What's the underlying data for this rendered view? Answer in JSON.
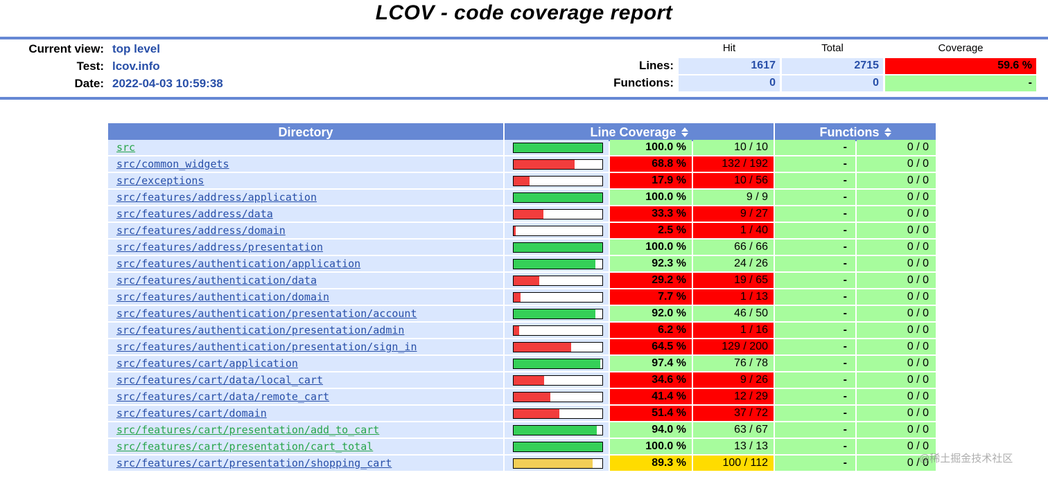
{
  "title": "LCOV - code coverage report",
  "watermark": "@稀土掘金技术社区",
  "colors": {
    "accent_blue": "#6688D4",
    "row_blue": "#DAE7FE",
    "value_blue": "#284FA8",
    "link_blue": "#284FA8",
    "link_green": "#28A54A",
    "coverage_hi": "#A7FC9D",
    "coverage_med": "#FFDC00",
    "coverage_lo": "#FF0000",
    "bar_hi": "#35D058",
    "bar_med": "#F2CE56",
    "bar_lo": "#F23D3D"
  },
  "header": {
    "fields": [
      {
        "label": "Current view:",
        "value": "top level"
      },
      {
        "label": "Test:",
        "value": "lcov.info"
      },
      {
        "label": "Date:",
        "value": "2022-04-03 10:59:38"
      }
    ],
    "stats": {
      "columns": [
        "Hit",
        "Total",
        "Coverage"
      ],
      "rows": [
        {
          "label": "Lines:",
          "hit": "1617",
          "total": "2715",
          "coverage": "59.6 %",
          "level": "lo"
        },
        {
          "label": "Functions:",
          "hit": "0",
          "total": "0",
          "coverage": "-",
          "level": "hi"
        }
      ]
    }
  },
  "table": {
    "headers": [
      {
        "label": "Directory",
        "sortable": false
      },
      {
        "label": "Line Coverage",
        "sortable": true
      },
      {
        "label": "Functions",
        "sortable": true
      }
    ],
    "rows": [
      {
        "path": "src",
        "link": "green",
        "pct": "100.0 %",
        "pct_value": 100.0,
        "ratio": "10 / 10",
        "level": "hi",
        "func_pct": "-",
        "func_ratio": "0 / 0"
      },
      {
        "path": "src/common_widgets",
        "link": "blue",
        "pct": "68.8 %",
        "pct_value": 68.8,
        "ratio": "132 / 192",
        "level": "lo",
        "func_pct": "-",
        "func_ratio": "0 / 0"
      },
      {
        "path": "src/exceptions",
        "link": "blue",
        "pct": "17.9 %",
        "pct_value": 17.9,
        "ratio": "10 / 56",
        "level": "lo",
        "func_pct": "-",
        "func_ratio": "0 / 0"
      },
      {
        "path": "src/features/address/application",
        "link": "blue",
        "pct": "100.0 %",
        "pct_value": 100.0,
        "ratio": "9 / 9",
        "level": "hi",
        "func_pct": "-",
        "func_ratio": "0 / 0"
      },
      {
        "path": "src/features/address/data",
        "link": "blue",
        "pct": "33.3 %",
        "pct_value": 33.3,
        "ratio": "9 / 27",
        "level": "lo",
        "func_pct": "-",
        "func_ratio": "0 / 0"
      },
      {
        "path": "src/features/address/domain",
        "link": "blue",
        "pct": "2.5 %",
        "pct_value": 2.5,
        "ratio": "1 / 40",
        "level": "lo",
        "func_pct": "-",
        "func_ratio": "0 / 0"
      },
      {
        "path": "src/features/address/presentation",
        "link": "blue",
        "pct": "100.0 %",
        "pct_value": 100.0,
        "ratio": "66 / 66",
        "level": "hi",
        "func_pct": "-",
        "func_ratio": "0 / 0"
      },
      {
        "path": "src/features/authentication/application",
        "link": "blue",
        "pct": "92.3 %",
        "pct_value": 92.3,
        "ratio": "24 / 26",
        "level": "hi",
        "func_pct": "-",
        "func_ratio": "0 / 0"
      },
      {
        "path": "src/features/authentication/data",
        "link": "blue",
        "pct": "29.2 %",
        "pct_value": 29.2,
        "ratio": "19 / 65",
        "level": "lo",
        "func_pct": "-",
        "func_ratio": "0 / 0"
      },
      {
        "path": "src/features/authentication/domain",
        "link": "blue",
        "pct": "7.7 %",
        "pct_value": 7.7,
        "ratio": "1 / 13",
        "level": "lo",
        "func_pct": "-",
        "func_ratio": "0 / 0"
      },
      {
        "path": "src/features/authentication/presentation/account",
        "link": "blue",
        "pct": "92.0 %",
        "pct_value": 92.0,
        "ratio": "46 / 50",
        "level": "hi",
        "func_pct": "-",
        "func_ratio": "0 / 0"
      },
      {
        "path": "src/features/authentication/presentation/admin",
        "link": "blue",
        "pct": "6.2 %",
        "pct_value": 6.2,
        "ratio": "1 / 16",
        "level": "lo",
        "func_pct": "-",
        "func_ratio": "0 / 0"
      },
      {
        "path": "src/features/authentication/presentation/sign_in",
        "link": "blue",
        "pct": "64.5 %",
        "pct_value": 64.5,
        "ratio": "129 / 200",
        "level": "lo",
        "func_pct": "-",
        "func_ratio": "0 / 0"
      },
      {
        "path": "src/features/cart/application",
        "link": "blue",
        "pct": "97.4 %",
        "pct_value": 97.4,
        "ratio": "76 / 78",
        "level": "hi",
        "func_pct": "-",
        "func_ratio": "0 / 0"
      },
      {
        "path": "src/features/cart/data/local_cart",
        "link": "blue",
        "pct": "34.6 %",
        "pct_value": 34.6,
        "ratio": "9 / 26",
        "level": "lo",
        "func_pct": "-",
        "func_ratio": "0 / 0"
      },
      {
        "path": "src/features/cart/data/remote_cart",
        "link": "blue",
        "pct": "41.4 %",
        "pct_value": 41.4,
        "ratio": "12 / 29",
        "level": "lo",
        "func_pct": "-",
        "func_ratio": "0 / 0"
      },
      {
        "path": "src/features/cart/domain",
        "link": "blue",
        "pct": "51.4 %",
        "pct_value": 51.4,
        "ratio": "37 / 72",
        "level": "lo",
        "func_pct": "-",
        "func_ratio": "0 / 0"
      },
      {
        "path": "src/features/cart/presentation/add_to_cart",
        "link": "green",
        "pct": "94.0 %",
        "pct_value": 94.0,
        "ratio": "63 / 67",
        "level": "hi",
        "func_pct": "-",
        "func_ratio": "0 / 0"
      },
      {
        "path": "src/features/cart/presentation/cart_total",
        "link": "green",
        "pct": "100.0 %",
        "pct_value": 100.0,
        "ratio": "13 / 13",
        "level": "hi",
        "func_pct": "-",
        "func_ratio": "0 / 0"
      },
      {
        "path": "src/features/cart/presentation/shopping_cart",
        "link": "blue",
        "pct": "89.3 %",
        "pct_value": 89.3,
        "ratio": "100 / 112",
        "level": "med",
        "func_pct": "-",
        "func_ratio": "0 / 0"
      }
    ]
  }
}
